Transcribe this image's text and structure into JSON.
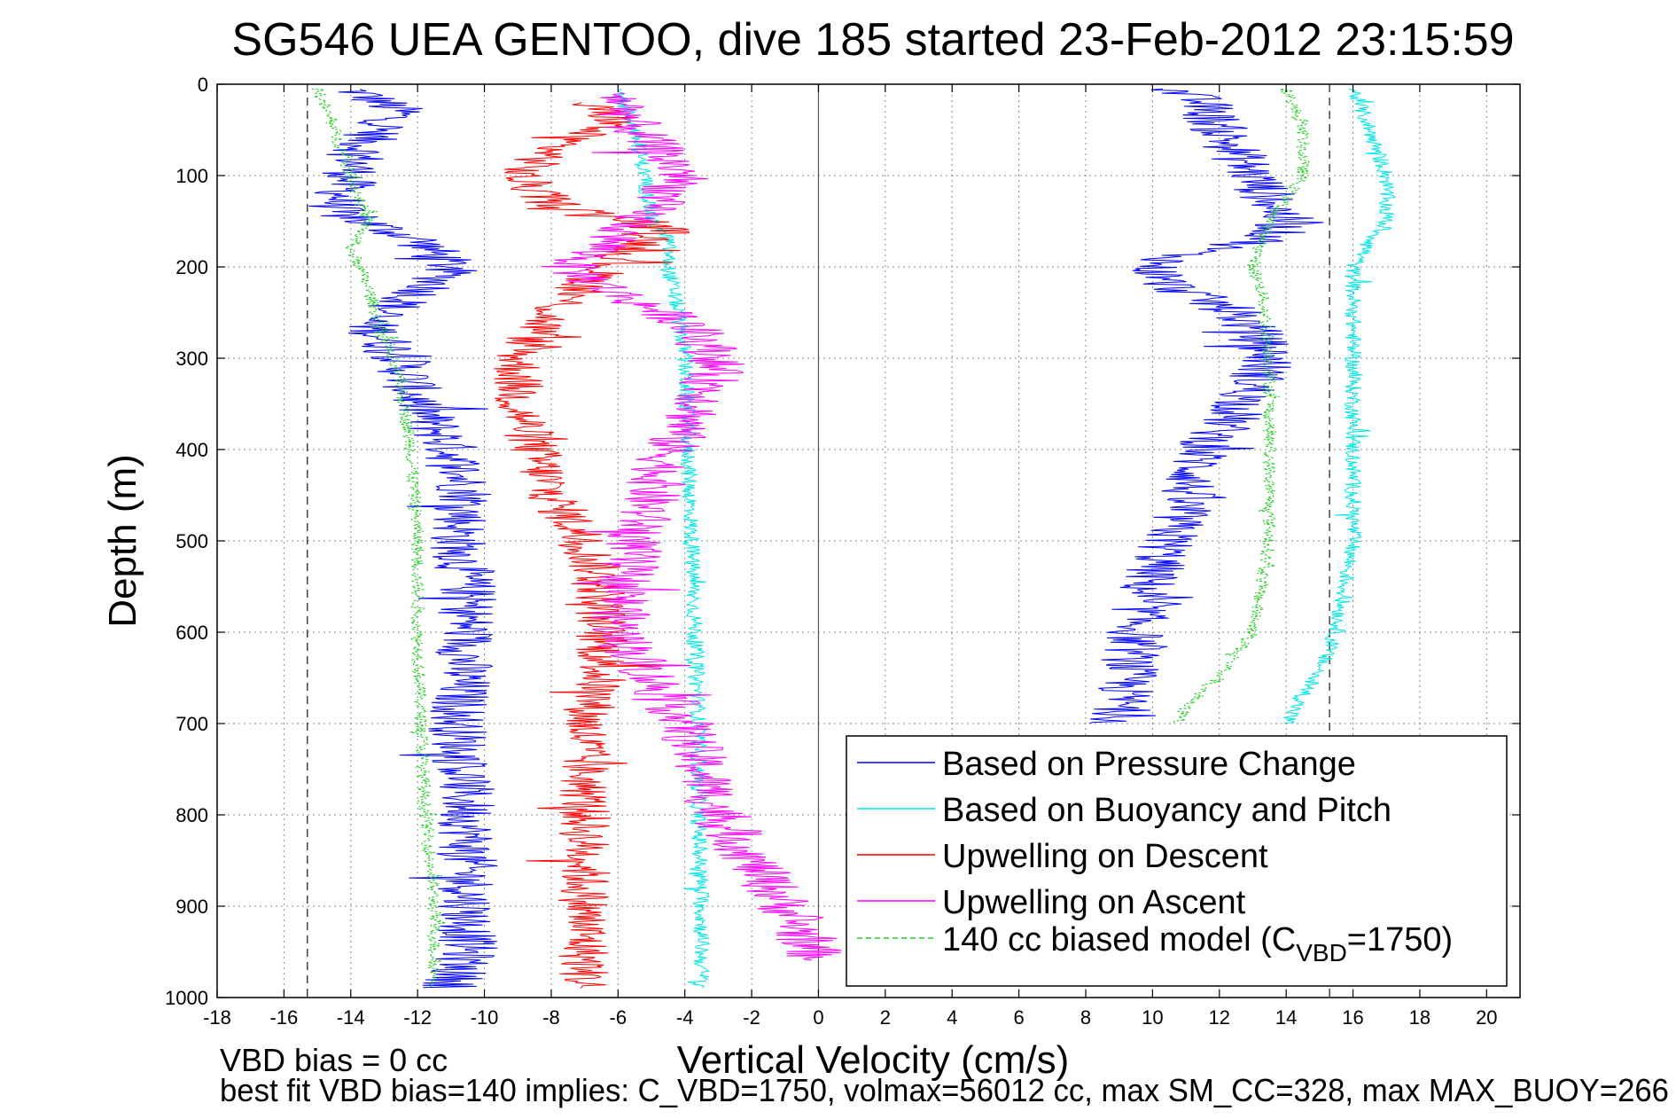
{
  "chart_data": {
    "type": "line",
    "title": "SG546 UEA GENTOO, dive 185 started 23-Feb-2012 23:15:59",
    "xlabel": "Vertical Velocity (cm/s)",
    "ylabel": "Depth (m)",
    "xlim": [
      -18,
      21
    ],
    "ylim": [
      0,
      1000
    ],
    "y_reversed": true,
    "x_ticks": [
      -18,
      -16,
      -14,
      -12,
      -10,
      -8,
      -6,
      -4,
      -2,
      0,
      2,
      4,
      6,
      8,
      10,
      12,
      14,
      16,
      18,
      20
    ],
    "y_ticks": [
      0,
      100,
      200,
      300,
      400,
      500,
      600,
      700,
      800,
      900,
      1000
    ],
    "grid": true,
    "legend_position": "bottom-right",
    "reference_lines": {
      "vertical_dashed": [
        -15.3,
        15.3
      ],
      "vertical_solid": [
        0
      ]
    },
    "series": [
      {
        "name": "Based on Pressure Change",
        "color": "#0000ff",
        "branches": [
          {
            "x": [
              -14,
              -12.5,
              -13.5,
              -14,
              -14.5,
              -12,
              -11,
              -11.5,
              -13.5,
              -12.5,
              -12,
              -11,
              -10.5,
              -10.8,
              -10.5,
              -10.5,
              -10.8,
              -10.5,
              -10.5,
              -10.5,
              -11
            ],
            "depth": [
              5,
              30,
              60,
              100,
              140,
              170,
              200,
              220,
              260,
              300,
              350,
              400,
              450,
              500,
              550,
              600,
              700,
              800,
              900,
              950,
              990
            ]
          },
          {
            "x": [
              10.5,
              11.5,
              12,
              13,
              14,
              13.5,
              11,
              10,
              10.5,
              12.5,
              13,
              13.5,
              13,
              12.5,
              11.5,
              11,
              10.5,
              9.8,
              9.5,
              9
            ],
            "depth": [
              5,
              20,
              50,
              100,
              150,
              170,
              185,
              200,
              220,
              250,
              270,
              300,
              330,
              360,
              400,
              450,
              500,
              550,
              600,
              700
            ]
          }
        ]
      },
      {
        "name": "Based on Buoyancy and Pitch",
        "color": "#00e5e5",
        "branches": [
          {
            "x": [
              -6,
              -5.5,
              -5.2,
              -5,
              -4.5,
              -4.5,
              -4.2,
              -4,
              -3.9,
              -3.8,
              -3.7,
              -3.6,
              -3.6,
              -3.5,
              -3.5
            ],
            "depth": [
              5,
              50,
              100,
              150,
              170,
              200,
              250,
              300,
              400,
              500,
              600,
              700,
              800,
              900,
              990
            ]
          },
          {
            "x": [
              16,
              16.5,
              17,
              17,
              16,
              16,
              16,
              16,
              16,
              15.5,
              15,
              14.5,
              14
            ],
            "depth": [
              5,
              50,
              100,
              150,
              200,
              250,
              300,
              400,
              500,
              600,
              640,
              670,
              700
            ]
          }
        ]
      },
      {
        "name": "Upwelling on Descent",
        "color": "#ff0000",
        "branches": [
          {
            "x": [
              -7,
              -6,
              -7.5,
              -9,
              -8,
              -4.5,
              -6,
              -7,
              -8,
              -9,
              -9,
              -8.5,
              -8,
              -7,
              -6.5,
              -6.5,
              -6.5,
              -7,
              -7,
              -7,
              -7,
              -7
            ],
            "depth": [
              20,
              40,
              60,
              100,
              130,
              160,
              190,
              220,
              250,
              300,
              350,
              400,
              450,
              500,
              550,
              600,
              650,
              700,
              800,
              900,
              950,
              990
            ]
          }
        ]
      },
      {
        "name": "Upwelling on Ascent",
        "color": "#ff00ff",
        "branches": [
          {
            "x": [
              -6,
              -5.5,
              -4,
              -5.5,
              -6.5,
              -7.5,
              -6,
              -4,
              -3,
              -3.5,
              -4.5,
              -5,
              -5.5,
              -5.8,
              -6,
              -5,
              -4,
              -3,
              -2,
              -1,
              0
            ],
            "depth": [
              10,
              50,
              100,
              150,
              180,
              200,
              230,
              260,
              300,
              350,
              400,
              450,
              500,
              550,
              600,
              650,
              700,
              800,
              850,
              900,
              960
            ]
          }
        ]
      },
      {
        "name": "140 cc biased model (C_VBD=1750)",
        "color": "#22cc22",
        "dashed": true,
        "branches": [
          {
            "x": [
              -15,
              -14.5,
              -14,
              -13.5,
              -14,
              -13.5,
              -13,
              -12.5,
              -12.2,
              -12,
              -12,
              -11.8,
              -11.5,
              -11.5
            ],
            "depth": [
              5,
              50,
              100,
              150,
              180,
              220,
              280,
              330,
              400,
              500,
              600,
              780,
              900,
              990
            ]
          },
          {
            "x": [
              14,
              14.5,
              14.5,
              13.5,
              13,
              13.3,
              13.5,
              13.5,
              13.5,
              13,
              12,
              11,
              10.8
            ],
            "depth": [
              5,
              50,
              100,
              150,
              200,
              230,
              300,
              400,
              500,
              600,
              650,
              680,
              700
            ]
          }
        ]
      }
    ],
    "legend": [
      {
        "label": "Based on Pressure Change",
        "color": "#0000ff",
        "dashed": false
      },
      {
        "label": "Based on Buoyancy and Pitch",
        "color": "#00e5e5",
        "dashed": false
      },
      {
        "label": "Upwelling on Descent",
        "color": "#ff0000",
        "dashed": false
      },
      {
        "label": "Upwelling on Ascent",
        "color": "#ff00ff",
        "dashed": false
      },
      {
        "label_main": "140 cc biased model (C",
        "label_sub": "VBD",
        "label_end": "=1750)",
        "color": "#22cc22",
        "dashed": true
      }
    ],
    "annotations": [
      "VBD bias = 0 cc",
      "best fit VBD bias=140 implies: C_VBD=1750, volmax=56012 cc, max SM_CC=328, max MAX_BUOY=266"
    ]
  }
}
